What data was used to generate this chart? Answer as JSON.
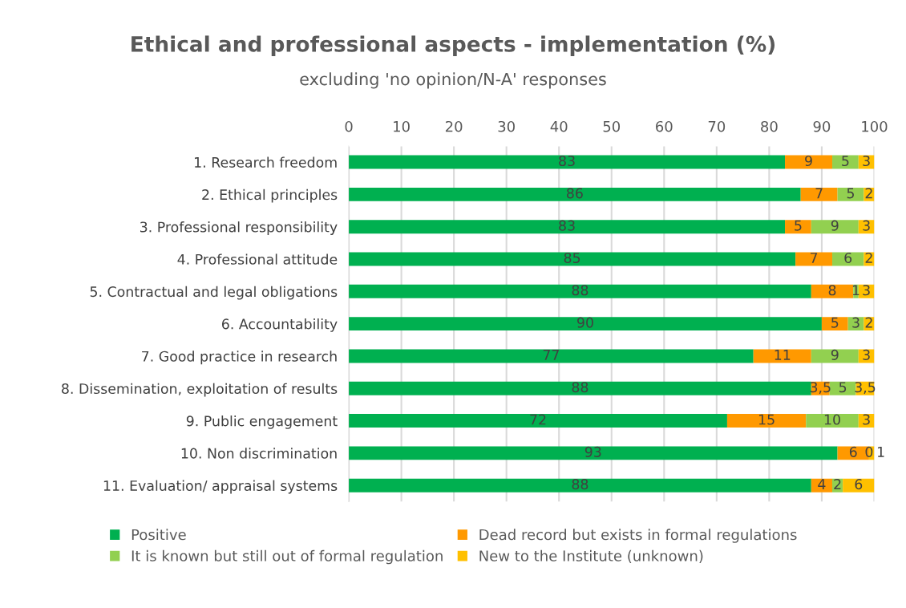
{
  "chart_data": {
    "type": "bar",
    "orientation": "horizontal",
    "stacked": true,
    "title": "Ethical and professional aspects - implementation (%)",
    "subtitle": "excluding 'no opinion/N-A' responses",
    "categories": [
      "1. Research freedom",
      "2. Ethical principles",
      "3. Professional responsibility",
      "4. Professional attitude",
      "5. Contractual and legal obligations",
      "6. Accountability",
      "7. Good practice in research",
      "8. Dissemination, exploitation of results",
      "9. Public engagement",
      "10. Non discrimination",
      "11. Evaluation/ appraisal systems"
    ],
    "series": [
      {
        "name": "Positive",
        "color": "#00b050",
        "values": [
          83,
          86,
          83,
          85,
          88,
          90,
          77,
          88,
          72,
          93,
          88
        ],
        "value_labels": [
          "83",
          "86",
          "83",
          "85",
          "88",
          "90",
          "77",
          "88",
          "72",
          "93",
          "88"
        ]
      },
      {
        "name": "Dead record but exists in formal regulations",
        "color": "#ff9900",
        "values": [
          9,
          7,
          5,
          7,
          8,
          5,
          11,
          3.5,
          15,
          6,
          4
        ],
        "value_labels": [
          "9",
          "7",
          "5",
          "7",
          "8",
          "5",
          "11",
          "3,5",
          "15",
          "6",
          "4"
        ]
      },
      {
        "name": "It is known but still out of formal regulation",
        "color": "#92d050",
        "values": [
          5,
          5,
          9,
          6,
          1,
          3,
          9,
          5,
          10,
          0,
          2
        ],
        "value_labels": [
          "5",
          "5",
          "9",
          "6",
          "1",
          "3",
          "9",
          "5",
          "10",
          "0",
          "2"
        ]
      },
      {
        "name": "New to the Institute (unknown)",
        "color": "#ffc000",
        "values": [
          3,
          2,
          3,
          2,
          3,
          2,
          3,
          3.5,
          3,
          1,
          6
        ],
        "value_labels": [
          "3",
          "2",
          "3",
          "2",
          "3",
          "2",
          "3",
          "3,5",
          "3",
          "1",
          "6"
        ]
      }
    ],
    "xlim": [
      0,
      100
    ],
    "xticks": [
      0,
      10,
      20,
      30,
      40,
      50,
      60,
      70,
      80,
      90,
      100
    ],
    "grid": "x",
    "legend": "bottom"
  }
}
